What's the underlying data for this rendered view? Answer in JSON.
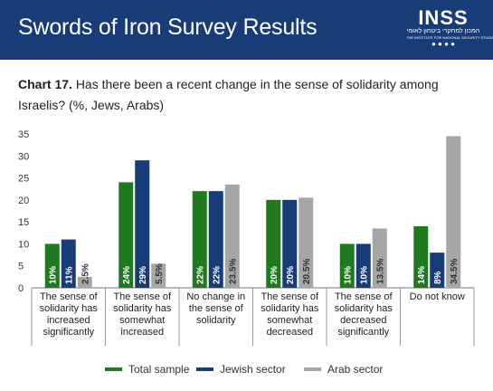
{
  "header": {
    "title": "Swords of Iron Survey Results",
    "logo_word": "INSS",
    "logo_sub": "המכון למחקרי ביטחון לאומי",
    "logo_sub2": "THE INSTITUTE FOR NATIONAL SECURITY STUDIES"
  },
  "chart_heading": {
    "label": "Chart 17.",
    "question": "Has there been a recent change in the sense of solidarity among Israelis? (%, Jews, Arabs)"
  },
  "colors": {
    "total": "#1f7a1f",
    "jewish": "#173c77",
    "arab": "#a6a6a6",
    "banner": "#173c77"
  },
  "chart_data": {
    "type": "bar",
    "title": "Has there been a recent change in the sense of solidarity among Israelis? (%, Jews, Arabs)",
    "xlabel": "",
    "ylabel": "",
    "ylim": [
      0,
      35
    ],
    "yticks": [
      0,
      5,
      10,
      15,
      20,
      25,
      30,
      35
    ],
    "grid": false,
    "legend": "bottom",
    "categories": [
      [
        "The sense of",
        "solidarity has",
        "increased",
        "significantly"
      ],
      [
        "The sense of",
        "solidarity has",
        "somewhat",
        "increased"
      ],
      [
        "No change in",
        "the sense of",
        "solidarity"
      ],
      [
        "The sense of",
        "solidarity has",
        "somewhat",
        "decreased"
      ],
      [
        "The sense of",
        "solidarity has",
        "decreased",
        "significantly"
      ],
      [
        "Do not know"
      ]
    ],
    "series": [
      {
        "name": "Total sample",
        "color": "#1f7a1f",
        "values": [
          10,
          24,
          22,
          20,
          10,
          14
        ],
        "labels": [
          "10%",
          "24%",
          "22%",
          "20%",
          "10%",
          "14%"
        ]
      },
      {
        "name": "Jewish sector",
        "color": "#173c77",
        "values": [
          11,
          29,
          22,
          20,
          10,
          8
        ],
        "labels": [
          "11%",
          "29%",
          "22%",
          "20%",
          "10%",
          "8%"
        ]
      },
      {
        "name": "Arab sector",
        "color": "#a6a6a6",
        "values": [
          2.5,
          5.5,
          23.5,
          20.5,
          13.5,
          34.5
        ],
        "labels": [
          "2.5%",
          "5.5%",
          "23.5%",
          "20.5%",
          "13.5%",
          "34.5%"
        ]
      }
    ]
  }
}
